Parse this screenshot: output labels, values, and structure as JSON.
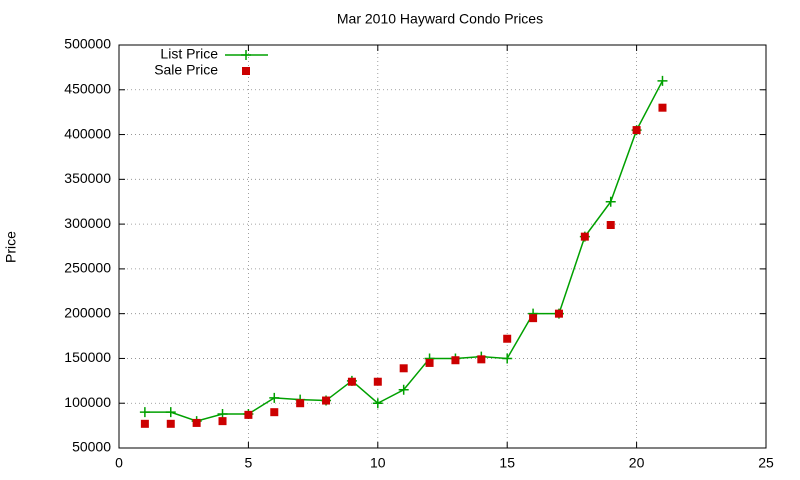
{
  "chart_data": {
    "type": "line",
    "title": "Mar 2010 Hayward Condo Prices",
    "y_label": "Price",
    "x": [
      1,
      2,
      3,
      4,
      5,
      6,
      7,
      8,
      9,
      10,
      11,
      12,
      13,
      14,
      15,
      16,
      17,
      18,
      19,
      20,
      21
    ],
    "series": [
      {
        "name": "List Price",
        "color": "#00a000",
        "marker": "plus",
        "line": true,
        "values": [
          90000,
          90000,
          80000,
          88000,
          88000,
          106000,
          104000,
          103000,
          125000,
          100000,
          115000,
          150000,
          150000,
          152000,
          150000,
          200000,
          200000,
          286000,
          325000,
          405000,
          460000
        ]
      },
      {
        "name": "Sale Price",
        "color": "#cc0000",
        "marker": "square",
        "line": false,
        "values": [
          77000,
          77000,
          78000,
          80000,
          87000,
          90000,
          100000,
          103000,
          124000,
          124000,
          139000,
          145000,
          148000,
          149000,
          172000,
          195000,
          200000,
          286000,
          299000,
          405000,
          430000
        ]
      }
    ],
    "xlim": [
      0,
      25
    ],
    "xticks": [
      0,
      5,
      10,
      15,
      20,
      25
    ],
    "ylim": [
      50000,
      500000
    ],
    "yticks": [
      50000,
      100000,
      150000,
      200000,
      250000,
      300000,
      350000,
      400000,
      450000,
      500000
    ],
    "grid": true,
    "legend": "top-left"
  }
}
